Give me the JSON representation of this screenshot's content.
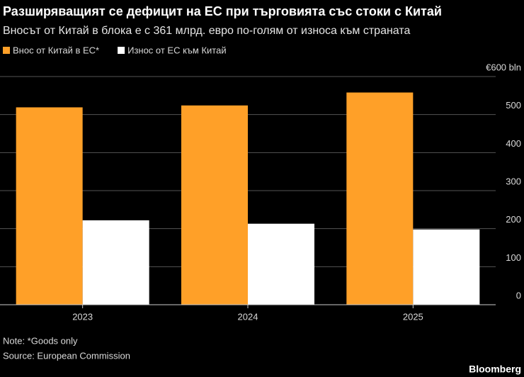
{
  "chart_data": {
    "type": "bar",
    "title": "Разширяващият се дефицит на ЕС при търговията със стоки с Китай",
    "subtitle": "Вносът от Китай в блока е с 361 млрд. евро по-голям от износа към страната",
    "categories": [
      "2023",
      "2024",
      "2025"
    ],
    "series": [
      {
        "name": "Внос от Китай в ЕС*",
        "color": "#ffa028",
        "values": [
          519,
          524,
          558
        ]
      },
      {
        "name": "Износ от ЕС към Китай",
        "color": "#ffffff",
        "values": [
          222,
          213,
          198
        ]
      }
    ],
    "ylim": [
      0,
      600
    ],
    "yticks": [
      0,
      100,
      200,
      300,
      400,
      500,
      {
        "value": 600,
        "label": "€600 bln"
      }
    ],
    "grid": true,
    "note": "Note: *Goods only",
    "source": "Source: European Commission",
    "brand": "Bloomberg"
  }
}
